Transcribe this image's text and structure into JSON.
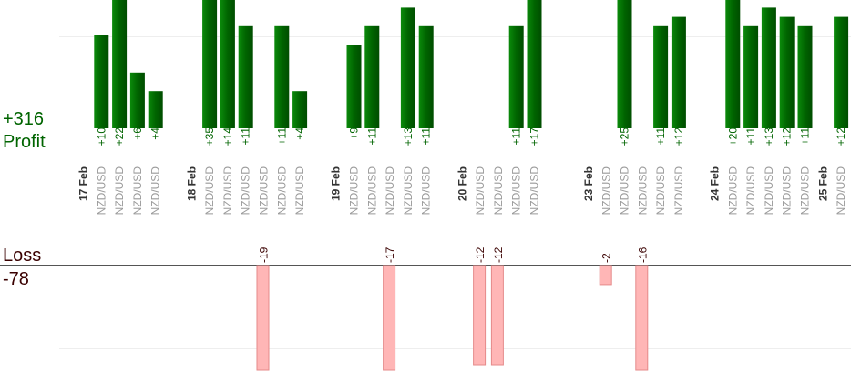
{
  "summary": {
    "profit_total": "+316",
    "profit_label": "Profit",
    "loss_label": "Loss",
    "loss_total": "-78"
  },
  "colors": {
    "profit": "#006400",
    "profit_light": "#0b8a0b",
    "loss_fill": "#ffb6b6",
    "loss_stroke": "#e58a8a",
    "pair_text": "#9a9a9a",
    "date_text": "#333333",
    "grid": "#eeeeee",
    "baseline": "#555555"
  },
  "chart_data": {
    "type": "bar",
    "ylim_profit": [
      0,
      14
    ],
    "ylim_loss": [
      0,
      11
    ],
    "slot_width": 19.8,
    "dates": [
      {
        "label": "17 Feb",
        "slot": 0
      },
      {
        "label": "18 Feb",
        "slot": 6
      },
      {
        "label": "19 Feb",
        "slot": 14
      },
      {
        "label": "20 Feb",
        "slot": 21
      },
      {
        "label": "23 Feb",
        "slot": 28
      },
      {
        "label": "24 Feb",
        "slot": 35
      },
      {
        "label": "25 Feb",
        "slot": 41
      }
    ],
    "trades": [
      {
        "slot": 1,
        "pair": "NZD/USD",
        "label": "+10",
        "value": 10
      },
      {
        "slot": 2,
        "pair": "NZD/USD",
        "label": "+22",
        "value": 14
      },
      {
        "slot": 3,
        "pair": "NZD/USD",
        "label": "+6",
        "value": 6
      },
      {
        "slot": 4,
        "pair": "NZD/USD",
        "label": "+4",
        "value": 4
      },
      {
        "slot": 7,
        "pair": "NZD/USD",
        "label": "+35",
        "value": 14
      },
      {
        "slot": 8,
        "pair": "NZD/USD",
        "label": "+14",
        "value": 14
      },
      {
        "slot": 9,
        "pair": "NZD/USD",
        "label": "+11",
        "value": 11
      },
      {
        "slot": 10,
        "pair": "NZD/USD",
        "label": "-19",
        "value": -19
      },
      {
        "slot": 11,
        "pair": "NZD/USD",
        "label": "+11",
        "value": 11
      },
      {
        "slot": 12,
        "pair": "NZD/USD",
        "label": "+4",
        "value": 4
      },
      {
        "slot": 15,
        "pair": "NZD/USD",
        "label": "+9",
        "value": 9
      },
      {
        "slot": 16,
        "pair": "NZD/USD",
        "label": "+11",
        "value": 11
      },
      {
        "slot": 17,
        "pair": "NZD/USD",
        "label": "-17",
        "value": -17
      },
      {
        "slot": 18,
        "pair": "NZD/USD",
        "label": "+13",
        "value": 13
      },
      {
        "slot": 19,
        "pair": "NZD/USD",
        "label": "+11",
        "value": 11
      },
      {
        "slot": 22,
        "pair": "NZD/USD",
        "label": "-12",
        "value": -12
      },
      {
        "slot": 23,
        "pair": "NZD/USD",
        "label": "-12",
        "value": -12
      },
      {
        "slot": 24,
        "pair": "NZD/USD",
        "label": "+11",
        "value": 11
      },
      {
        "slot": 25,
        "pair": "NZD/USD",
        "label": "+17",
        "value": 14
      },
      {
        "slot": 29,
        "pair": "NZD/USD",
        "label": "-2",
        "value": -2
      },
      {
        "slot": 30,
        "pair": "NZD/USD",
        "label": "+25",
        "value": 14
      },
      {
        "slot": 31,
        "pair": "NZD/USD",
        "label": "-16",
        "value": -16
      },
      {
        "slot": 32,
        "pair": "NZD/USD",
        "label": "+11",
        "value": 11
      },
      {
        "slot": 33,
        "pair": "NZD/USD",
        "label": "+12",
        "value": 12
      },
      {
        "slot": 36,
        "pair": "NZD/USD",
        "label": "+20",
        "value": 14
      },
      {
        "slot": 37,
        "pair": "NZD/USD",
        "label": "+11",
        "value": 11
      },
      {
        "slot": 38,
        "pair": "NZD/USD",
        "label": "+13",
        "value": 13
      },
      {
        "slot": 39,
        "pair": "NZD/USD",
        "label": "+12",
        "value": 12
      },
      {
        "slot": 40,
        "pair": "NZD/USD",
        "label": "+11",
        "value": 11
      },
      {
        "slot": 42,
        "pair": "NZD/USD",
        "label": "+12",
        "value": 12
      }
    ]
  }
}
